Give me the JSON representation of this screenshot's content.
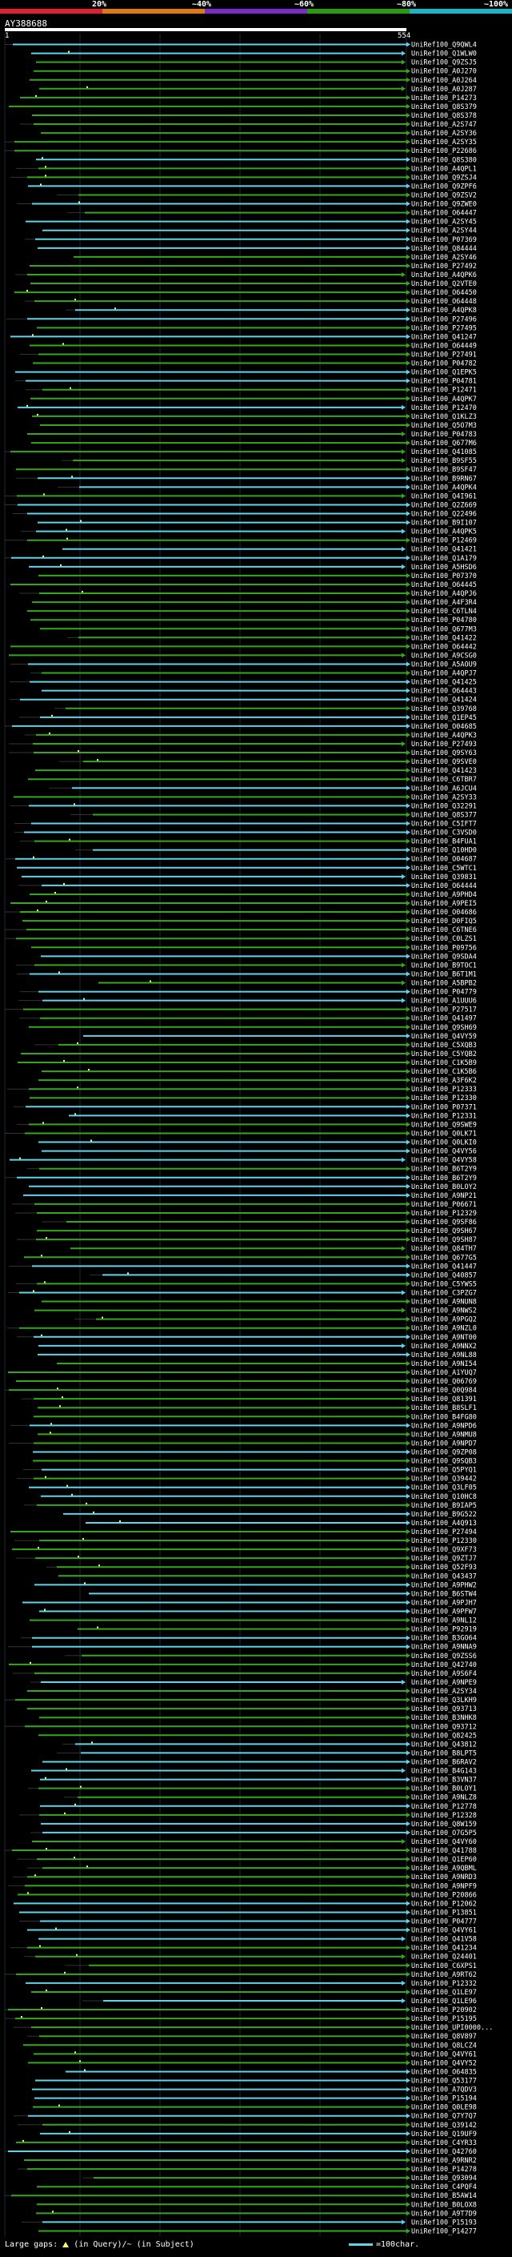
{
  "scale": {
    "labels": [
      "20%",
      "~40%",
      "~60%",
      "~80%",
      "~100%"
    ],
    "colors": [
      "#e0202a",
      "#e07a10",
      "#7a2cc8",
      "#2a9a10",
      "#1ab6c8"
    ]
  },
  "query": {
    "name": "AY388688",
    "start": "1",
    "end": "554"
  },
  "legend": {
    "text_a": "Large gaps:",
    "text_b": "(in Query)/~ (in Subject)",
    "scale_text": "=100char."
  },
  "chart_data": {
    "type": "alignment-overview",
    "query_length": 554,
    "colors": {
      "cyan": "#5fd3e8",
      "green": "#35a81a",
      "dot": "#ffff66"
    },
    "hits": [
      "UniRef100_Q9QWL4",
      "UniRef100_Q1WLW0",
      "UniRef100_Q9ZSJ5",
      "UniRef100_A0J270",
      "UniRef100_A0J264",
      "UniRef100_A0J287",
      "UniRef100_P14273",
      "UniRef100_Q8S379",
      "UniRef100_Q8S378",
      "UniRef100_A2S747",
      "UniRef100_A2SY36",
      "UniRef100_A2SY35",
      "UniRef100_P22686",
      "UniRef100_Q8S380",
      "UniRef100_A4QPL1",
      "UniRef100_Q9ZSJ4",
      "UniRef100_Q9ZPF6",
      "UniRef100_Q9ZSV2",
      "UniRef100_Q9ZWE0",
      "UniRef100_O64447",
      "UniRef100_A2SY45",
      "UniRef100_A2SY44",
      "UniRef100_P07369",
      "UniRef100_Q84444",
      "UniRef100_A2SY46",
      "UniRef100_P27492",
      "UniRef100_A4QPK6",
      "UniRef100_Q2VTE0",
      "UniRef100_O64450",
      "UniRef100_O64448",
      "UniRef100_A4QPK8",
      "UniRef100_P27496",
      "UniRef100_P27495",
      "UniRef100_Q41247",
      "UniRef100_O64449",
      "UniRef100_P27491",
      "UniRef100_P04782",
      "UniRef100_Q1EPK5",
      "UniRef100_P04781",
      "UniRef100_P12471",
      "UniRef100_A4QPK7",
      "UniRef100_P12470",
      "UniRef100_Q1KLZ3",
      "UniRef100_Q5O7M3",
      "UniRef100_P04783",
      "UniRef100_Q677M6",
      "UniRef100_Q41085",
      "UniRef100_B9SF55",
      "UniRef100_B9SF47",
      "UniRef100_B9RN67",
      "UniRef100_A4QPK4",
      "UniRef100_Q4I961",
      "UniRef100_Q2Z669",
      "UniRef100_Q22496",
      "UniRef100_B9I107",
      "UniRef100_A4QPK5",
      "UniRef100_P12469",
      "UniRef100_Q41421",
      "UniRef100_Q1A179",
      "UniRef100_A5HSD6",
      "UniRef100_P07370",
      "UniRef100_O64445",
      "UniRef100_A4QPJ6",
      "UniRef100_A4F3R4",
      "UniRef100_C6TLN4",
      "UniRef100_P04780",
      "UniRef100_Q677M3",
      "UniRef100_Q41422",
      "UniRef100_O64442",
      "UniRef100_A9CSG0",
      "UniRef100_A5AOU9",
      "UniRef100_A4QPJ7",
      "UniRef100_Q41425",
      "UniRef100_O64443",
      "UniRef100_Q41424",
      "UniRef100_Q39768",
      "UniRef100_Q1EP45",
      "UniRef100_O04685",
      "UniRef100_A4QPK3",
      "UniRef100_P27493",
      "UniRef100_Q9SY63",
      "UniRef100_Q9SVE0",
      "UniRef100_Q41423",
      "UniRef100_C6TBR7",
      "UniRef100_A6JCU4",
      "UniRef100_A2SY33",
      "UniRef100_Q32291",
      "UniRef100_Q8S377",
      "UniRef100_C5IFT7",
      "UniRef100_C3VSD0",
      "UniRef100_B4FUA1",
      "UniRef100_Q10HD0",
      "UniRef100_O04687",
      "UniRef100_C5WTC1",
      "UniRef100_Q39831",
      "UniRef100_O64444",
      "UniRef100_A9PHD4",
      "UniRef100_A9PEI5",
      "UniRef100_O04686",
      "UniRef100_D0FIQ5",
      "UniRef100_C6TNE6",
      "UniRef100_C0LZS1",
      "UniRef100_P09756",
      "UniRef100_Q9SDA4",
      "UniRef100_B9TOC1",
      "UniRef100_B6T1M1",
      "UniRef100_A5BPB2",
      "UniRef100_P04779",
      "UniRef100_A1UUU6",
      "UniRef100_P27517",
      "UniRef100_Q41497",
      "UniRef100_Q9SH69",
      "UniRef100_Q4VY59",
      "UniRef100_C5XQB3",
      "UniRef100_C5YQB2",
      "UniRef100_C1K5B9",
      "UniRef100_C1K5B6",
      "UniRef100_A3F6K2",
      "UniRef100_P12333",
      "UniRef100_P12330",
      "UniRef100_P07371",
      "UniRef100_P12331",
      "UniRef100_Q9SWE9",
      "UniRef100_Q0LK71",
      "UniRef100_Q0LKI0",
      "UniRef100_Q4VY56",
      "UniRef100_Q4VY58",
      "UniRef100_B6T2Y9",
      "UniRef100_B6T2Y9",
      "UniRef100_B0LOY2",
      "UniRef100_A9NP21",
      "UniRef100_P06671",
      "UniRef100_P12329",
      "UniRef100_Q9SF86",
      "UniRef100_Q9SH67",
      "UniRef100_Q9SH87",
      "UniRef100_Q84TH7",
      "UniRef100_Q677G5",
      "UniRef100_Q41447",
      "UniRef100_Q40857",
      "UniRef100_C5YWS5",
      "UniRef100_C3PZG7",
      "UniRef100_A9NUN8",
      "UniRef100_A9NWS2",
      "UniRef100_A9PGQ2",
      "UniRef100_A9NZL0",
      "UniRef100_A9NT00",
      "UniRef100_A9NNX2",
      "UniRef100_A9NL88",
      "UniRef100_A9NI54",
      "UniRef100_A1YUQ7",
      "UniRef100_Q06769",
      "UniRef100_Q0Q984",
      "UniRef100_Q81391",
      "UniRef100_B8SLF1",
      "UniRef100_B4FG80",
      "UniRef100_A9NPD6",
      "UniRef100_A9NMU8",
      "UniRef100_A9NPD7",
      "UniRef100_Q9ZP08",
      "UniRef100_Q9SQB3",
      "UniRef100_Q5PYQ1",
      "UniRef100_Q39442",
      "UniRef100_Q3LF05",
      "UniRef100_Q10HC8",
      "UniRef100_B9IAP5",
      "UniRef100_B9G522",
      "UniRef100_A4Q913",
      "UniRef100_P27494",
      "UniRef100_P12330",
      "UniRef100_Q9XF73",
      "UniRef100_Q9ZTJ7",
      "UniRef100_Q52F93",
      "UniRef100_Q43437",
      "UniRef100_A9PHW2",
      "UniRef100_B6STW4",
      "UniRef100_A9PJH7",
      "UniRef100_A9PFW7",
      "UniRef100_A9NL12",
      "UniRef100_P92919",
      "UniRef100_B3GO64",
      "UniRef100_A9NNA9",
      "UniRef100_Q9ZSS6",
      "UniRef100_Q42740",
      "UniRef100_A9S6F4",
      "UniRef100_A9NPE9",
      "UniRef100_A2SY34",
      "UniRef100_Q3LKH9",
      "UniRef100_Q93713",
      "UniRef100_B3NHK8",
      "UniRef100_Q93712",
      "UniRef100_Q82425",
      "UniRef100_Q43812",
      "UniRef100_B8LPT5",
      "UniRef100_B6RAV2",
      "UniRef100_B4G143",
      "UniRef100_B3VN37",
      "UniRef100_B0LOY1",
      "UniRef100_A9NLZ8",
      "UniRef100_P12778",
      "UniRef100_P12328",
      "UniRef100_Q8W159",
      "UniRef100_O7G5P5",
      "UniRef100_Q4VY60",
      "UniRef100_Q41788",
      "UniRef100_Q1EP60",
      "UniRef100_A9QBML",
      "UniRef100_A9NRD3",
      "UniRef100_A9NPF9",
      "UniRef100_P20866",
      "UniRef100_P12062",
      "UniRef100_P13851",
      "UniRef100_P04777",
      "UniRef100_Q4VY61",
      "UniRef100_Q41V58",
      "UniRef100_Q41234",
      "UniRef100_Q24401",
      "UniRef100_C6XPS1",
      "UniRef100_A9RT62",
      "UniRef100_P12332",
      "UniRef100_Q1LE97",
      "UniRef100_Q1LE96",
      "UniRef100_P20902",
      "UniRef100_P15195",
      "UniRef100_UPI0000...",
      "UniRef100_Q8V897",
      "UniRef100_Q8LCZ4",
      "UniRef100_Q4VY61",
      "UniRef100_Q4VY52",
      "UniRef100_O64835",
      "UniRef100_Q53177",
      "UniRef100_A7QDV3",
      "UniRef100_P15194",
      "UniRef100_Q0LE98",
      "UniRef100_Q7Y7Q7",
      "UniRef100_Q39142",
      "UniRef100_Q19UF9",
      "UniRef100_C4YR33",
      "UniRef100_Q42760",
      "UniRef100_A9RNR2",
      "UniRef100_P14278",
      "UniRef100_Q93094",
      "UniRef100_C4PQF4",
      "UniRef100_B5AW14",
      "UniRef100_B0LOX8",
      "UniRef100_A9T7D9",
      "UniRef100_P15193",
      "UniRef100_P14277"
    ]
  }
}
